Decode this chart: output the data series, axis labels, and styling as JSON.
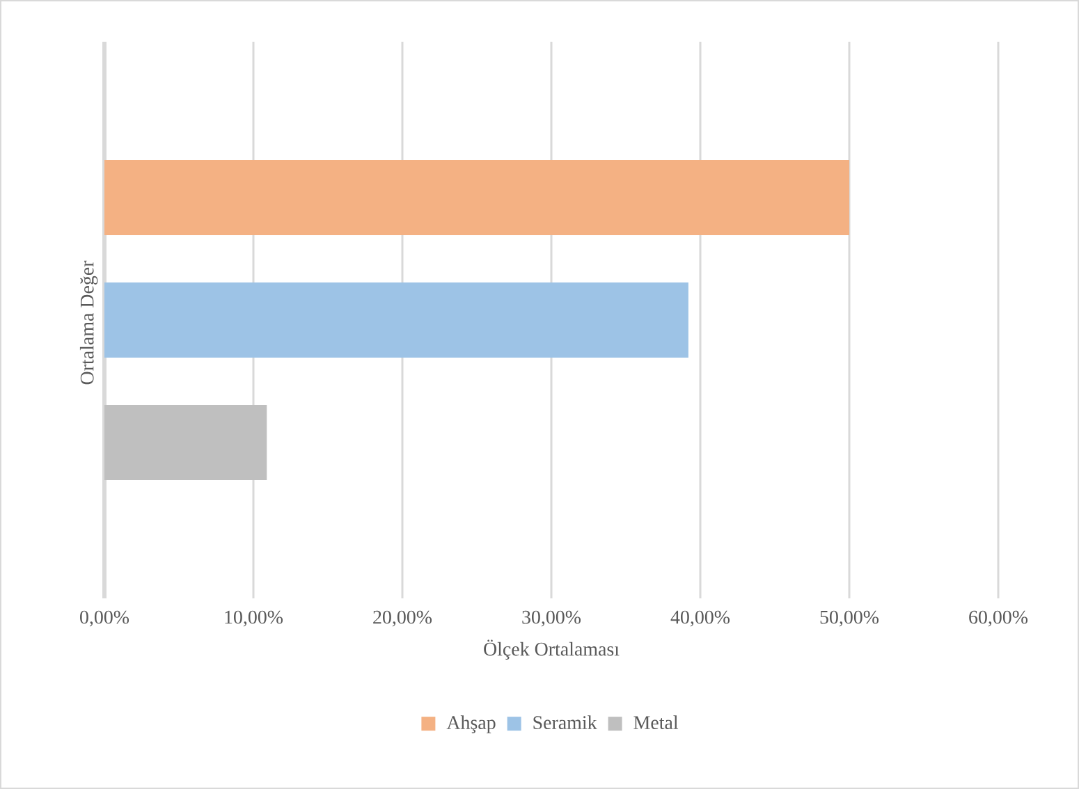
{
  "chart_data": {
    "type": "bar",
    "orientation": "horizontal",
    "categories": [
      "Ortalama Değer"
    ],
    "series": [
      {
        "name": "Ahşap",
        "color": "#f4b183",
        "values": [
          50
        ]
      },
      {
        "name": "Seramik",
        "color": "#9dc3e6",
        "values": [
          39.2
        ]
      },
      {
        "name": "Metal",
        "color": "#bfbfbf",
        "values": [
          10.9
        ]
      }
    ],
    "xlabel": "Ölçek Ortalaması",
    "xlim": [
      0,
      60
    ],
    "xticks": [
      {
        "value": 0,
        "label": "0,00%"
      },
      {
        "value": 10,
        "label": "10,00%"
      },
      {
        "value": 20,
        "label": "20,00%"
      },
      {
        "value": 30,
        "label": "30,00%"
      },
      {
        "value": 40,
        "label": "40,00%"
      },
      {
        "value": 50,
        "label": "50,00%"
      },
      {
        "value": 60,
        "label": "60,00%"
      }
    ],
    "grid": "x",
    "legend": "bottom"
  }
}
